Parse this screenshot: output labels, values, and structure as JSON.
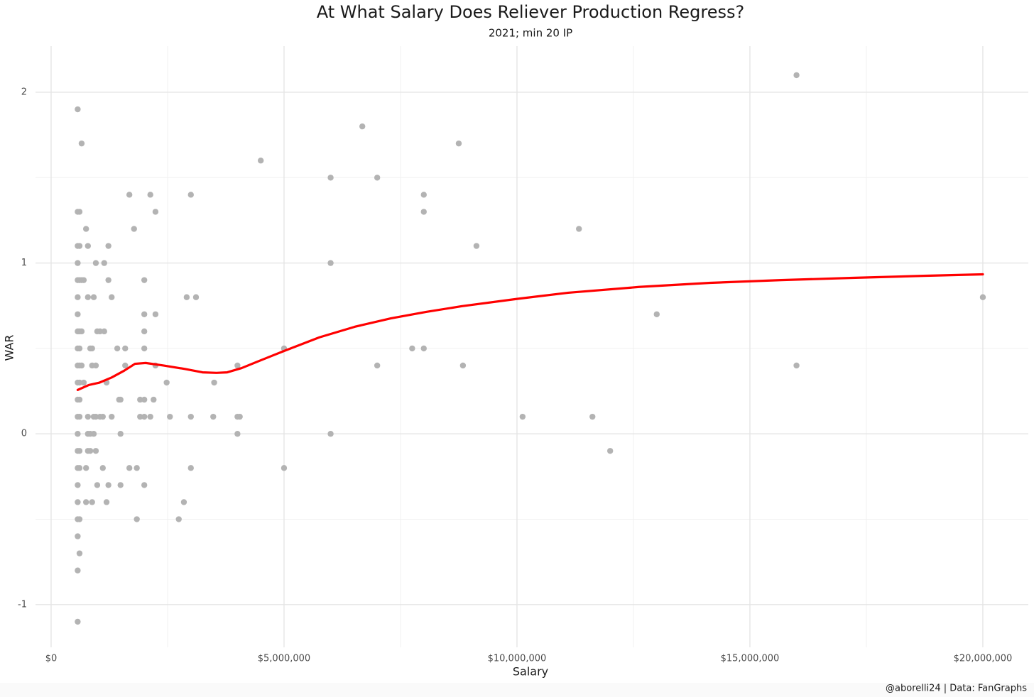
{
  "chart_data": {
    "type": "scatter",
    "title": "At What Salary Does Reliever Production Regress?",
    "subtitle": "2021; min 20 IP",
    "x_label": "Salary",
    "y_label": "WAR",
    "caption": "@aborelli24 | Data: FanGraphs",
    "xlim": [
      -335000,
      20976000
    ],
    "ylim": [
      -1.25,
      2.27
    ],
    "xticks": [
      {
        "value": 0,
        "label": "$0"
      },
      {
        "value": 5000000,
        "label": "$5,000,000"
      },
      {
        "value": 10000000,
        "label": "$10,000,000"
      },
      {
        "value": 15000000,
        "label": "$15,000,000"
      },
      {
        "value": 20000000,
        "label": "$20,000,000"
      }
    ],
    "yticks": [
      -1,
      0,
      1,
      2
    ],
    "xminor": [
      2500000,
      7500000,
      12500000,
      17500000
    ],
    "yminor": [
      -0.5,
      0.5,
      1.5
    ],
    "grid": true,
    "points": {
      "color": "#b3b3b3",
      "x": [
        570500,
        570500,
        570500,
        570500,
        570500,
        570500,
        570500,
        570500,
        570500,
        570500,
        570500,
        570500,
        570500,
        570500,
        570500,
        570500,
        570500,
        570500,
        570500,
        570500,
        570500,
        570500,
        610000,
        610000,
        610000,
        610000,
        610000,
        610000,
        610000,
        610000,
        610000,
        610000,
        610000,
        610000,
        610000,
        655000,
        655000,
        655000,
        655000,
        700000,
        700000,
        750000,
        750000,
        750000,
        790000,
        790000,
        790000,
        790000,
        790000,
        840000,
        840000,
        840000,
        880000,
        880000,
        880000,
        915000,
        915000,
        915000,
        960000,
        960000,
        960000,
        960000,
        990000,
        990000,
        1050000,
        1050000,
        1110000,
        1110000,
        1140000,
        1140000,
        1190000,
        1190000,
        1230000,
        1230000,
        1230000,
        1300000,
        1300000,
        1420000,
        1460000,
        1490000,
        1490000,
        1490000,
        1590000,
        1590000,
        1680000,
        1680000,
        1780000,
        1840000,
        1840000,
        1910000,
        1910000,
        2000000,
        2000000,
        2000000,
        2000000,
        2000000,
        2000000,
        2000000,
        2130000,
        2130000,
        2200000,
        2240000,
        2240000,
        2240000,
        2480000,
        2550000,
        2740000,
        2850000,
        2910000,
        3000000,
        3000000,
        3000000,
        3110000,
        3480000,
        3500000,
        4000000,
        4000000,
        4000000,
        4050000,
        4500000,
        5000000,
        5000000,
        6000000,
        6000000,
        6000000,
        6680000,
        7000000,
        7000000,
        7750000,
        8000000,
        8000000,
        8000000,
        8750000,
        8840000,
        9130000,
        10120000,
        11330000,
        11620000,
        12000000,
        13000000,
        16000000,
        16000000,
        20000000
      ],
      "y": [
        1.9,
        1.3,
        1.1,
        1.0,
        0.9,
        0.8,
        0.7,
        0.6,
        0.5,
        0.4,
        0.3,
        0.2,
        0.1,
        0,
        -0.1,
        -0.2,
        -0.3,
        -0.4,
        -0.5,
        -0.6,
        -0.8,
        -1.1,
        1.3,
        1.1,
        0.9,
        0.6,
        0.5,
        0.4,
        0.3,
        0.2,
        0.1,
        -0.1,
        -0.2,
        -0.5,
        -0.7,
        1.7,
        0.9,
        0.6,
        0.4,
        0.9,
        0.3,
        1.2,
        -0.2,
        -0.4,
        1.1,
        0.8,
        0.1,
        0,
        -0.1,
        0.5,
        0,
        -0.1,
        0.5,
        0.4,
        -0.4,
        0.8,
        0.1,
        0,
        1.0,
        0.4,
        0.1,
        -0.1,
        0.6,
        -0.3,
        0.6,
        0.1,
        0.1,
        -0.2,
        1.0,
        0.6,
        0.3,
        -0.4,
        1.1,
        0.9,
        -0.3,
        0.8,
        0.1,
        0.5,
        0.2,
        0,
        0.2,
        -0.3,
        0.4,
        0.5,
        1.4,
        -0.2,
        1.2,
        -0.2,
        -0.5,
        0.2,
        0.1,
        0.9,
        0.7,
        0.6,
        0.5,
        0.2,
        0.1,
        -0.3,
        1.4,
        0.1,
        0.2,
        1.3,
        0.7,
        0.4,
        0.3,
        0.1,
        -0.5,
        -0.4,
        0.8,
        1.4,
        0.1,
        -0.2,
        0.8,
        0.1,
        0.3,
        0.4,
        0.1,
        0,
        0.1,
        1.6,
        0.5,
        -0.2,
        1.5,
        1.0,
        0,
        1.8,
        1.5,
        0.4,
        0.5,
        1.4,
        1.3,
        0.5,
        1.7,
        0.4,
        1.1,
        0.1,
        1.2,
        0.1,
        -0.1,
        0.7,
        2.1,
        0.4,
        0.8
      ]
    },
    "smooth": {
      "color": "#ff0000",
      "x": [
        570500,
        810000,
        1040000,
        1300000,
        1570000,
        1800000,
        2030000,
        2410000,
        2870000,
        3250000,
        3550000,
        3780000,
        4090000,
        4540000,
        5000000,
        5760000,
        6520000,
        7290000,
        8050000,
        8810000,
        10000000,
        11100000,
        12620000,
        14150000,
        15670000,
        17200000,
        18720000,
        20000000
      ],
      "y": [
        0.257,
        0.286,
        0.3,
        0.33,
        0.37,
        0.41,
        0.415,
        0.4,
        0.38,
        0.36,
        0.357,
        0.36,
        0.385,
        0.435,
        0.485,
        0.565,
        0.627,
        0.676,
        0.714,
        0.747,
        0.79,
        0.826,
        0.86,
        0.884,
        0.9,
        0.913,
        0.925,
        0.934
      ]
    }
  }
}
